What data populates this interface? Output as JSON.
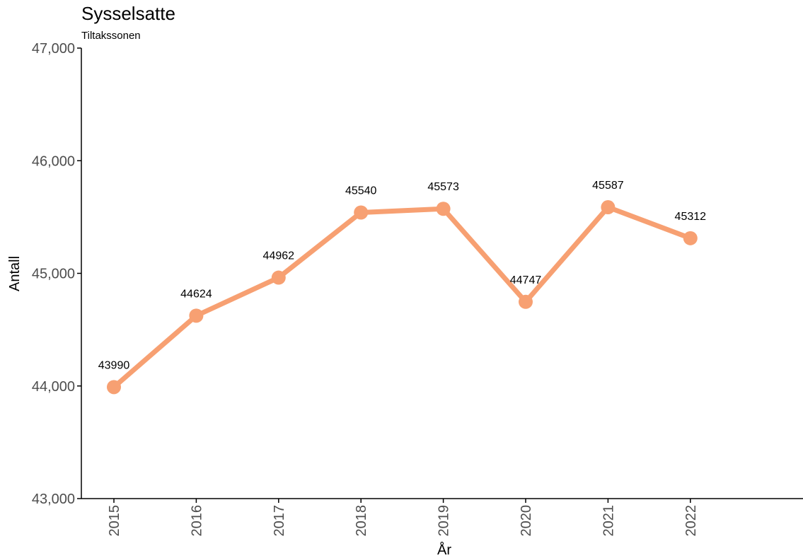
{
  "colors": {
    "series": "#F7A072",
    "axis": "#000000",
    "tick_text": "#4d4d4d"
  },
  "chart_data": {
    "type": "line",
    "title": "Sysselsatte",
    "subtitle": "Tiltakssonen",
    "xlabel": "År",
    "ylabel": "Antall",
    "x": [
      "2015",
      "2016",
      "2017",
      "2018",
      "2019",
      "2020",
      "2021",
      "2022"
    ],
    "series": [
      {
        "values": [
          43990,
          44624,
          44962,
          45540,
          45573,
          44747,
          45587,
          45312
        ]
      }
    ],
    "data_labels": [
      "43990",
      "44624",
      "44962",
      "45540",
      "45573",
      "44747",
      "45587",
      "45312"
    ],
    "ylim": [
      43000,
      47000
    ],
    "yticks": [
      43000,
      44000,
      45000,
      46000,
      47000
    ],
    "ytick_labels": [
      "43,000",
      "44,000",
      "45,000",
      "46,000",
      "47,000"
    ],
    "grid": false,
    "legend": "none"
  }
}
